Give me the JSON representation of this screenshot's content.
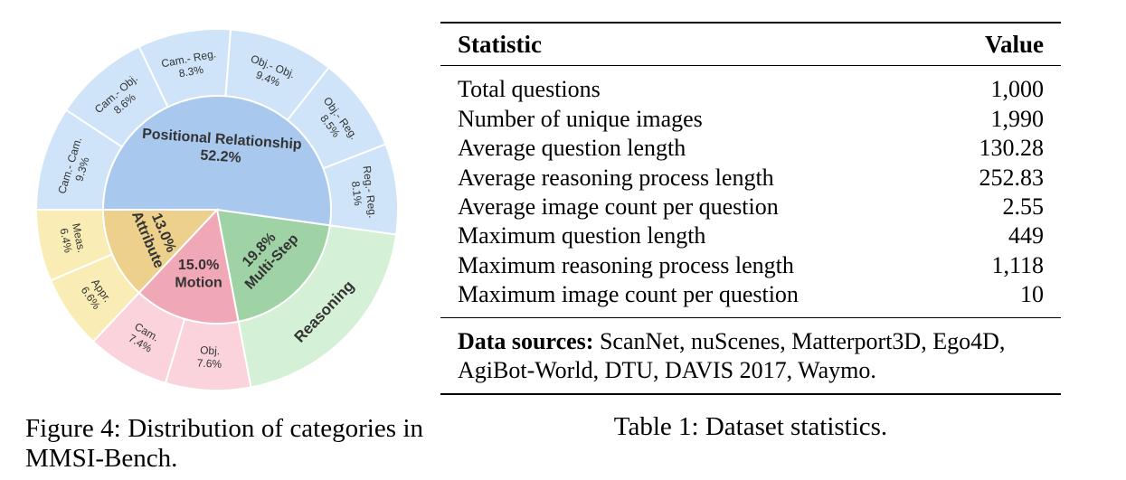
{
  "figure": {
    "caption": "Figure 4: Distribution of categories in MMSI-Bench.",
    "chart_data": {
      "type": "sunburst",
      "unit": "%",
      "inner": [
        {
          "label": "Positional Relationship",
          "value": 52.2,
          "color": "#a9c8ee"
        },
        {
          "label": "Multi-Step Reasoning",
          "value": 19.8,
          "color": "#9fd3a5"
        },
        {
          "label": "Motion",
          "value": 15.0,
          "color": "#f0a8b6"
        },
        {
          "label": "Attribute",
          "value": 13.0,
          "color": "#ecd08c"
        }
      ],
      "outer": [
        {
          "label": "Cam.- Cam.",
          "value": 9.3,
          "parent": "Positional Relationship",
          "color": "#cfe4f8"
        },
        {
          "label": "Cam.- Obj.",
          "value": 8.6,
          "parent": "Positional Relationship",
          "color": "#cfe4f8"
        },
        {
          "label": "Cam.- Reg.",
          "value": 8.3,
          "parent": "Positional Relationship",
          "color": "#cfe4f8"
        },
        {
          "label": "Obj.- Obj.",
          "value": 9.4,
          "parent": "Positional Relationship",
          "color": "#cfe4f8"
        },
        {
          "label": "Obj.- Reg.",
          "value": 8.5,
          "parent": "Positional Relationship",
          "color": "#cfe4f8"
        },
        {
          "label": "Reg.- Reg.",
          "value": 8.1,
          "parent": "Positional Relationship",
          "color": "#cfe4f8"
        },
        {
          "label": "Reasoning",
          "value": 19.8,
          "parent": "Multi-Step Reasoning",
          "color": "#d4f0d6"
        },
        {
          "label": "Obj.",
          "value": 7.6,
          "parent": "Motion",
          "color": "#fad3dc"
        },
        {
          "label": "Cam.",
          "value": 7.4,
          "parent": "Motion",
          "color": "#fad3dc"
        },
        {
          "label": "Appr.",
          "value": 6.6,
          "parent": "Attribute",
          "color": "#f9edb5"
        },
        {
          "label": "Meas.",
          "value": 6.4,
          "parent": "Attribute",
          "color": "#f9edb5"
        }
      ]
    }
  },
  "table": {
    "header": {
      "statistic": "Statistic",
      "value": "Value"
    },
    "rows": [
      {
        "label": "Total questions",
        "value": "1,000"
      },
      {
        "label": "Number of unique images",
        "value": "1,990"
      },
      {
        "label": "Average question length",
        "value": "130.28"
      },
      {
        "label": "Average reasoning process length",
        "value": "252.83"
      },
      {
        "label": "Average image count per question",
        "value": "2.55"
      },
      {
        "label": "Maximum question length",
        "value": "449"
      },
      {
        "label": "Maximum reasoning process length",
        "value": "1,118"
      },
      {
        "label": "Maximum image count per question",
        "value": "10"
      }
    ],
    "sources_label": "Data sources:",
    "sources_text": "ScanNet, nuScenes, Matterport3D, Ego4D, AgiBot-World, DTU, DAVIS 2017, Waymo.",
    "caption": "Table 1: Dataset statistics."
  }
}
